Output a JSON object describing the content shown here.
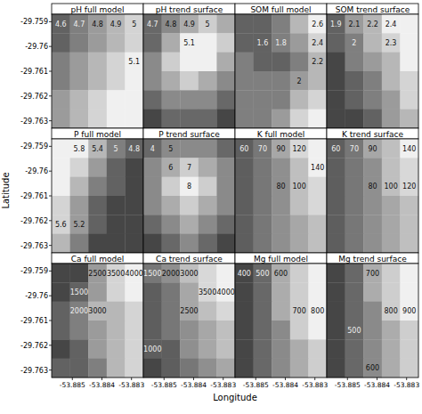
{
  "chart_data": {
    "type": "contour",
    "xlabel": "Longitude",
    "ylabel": "Latitude",
    "xlim": [
      -53.8857,
      -53.8826
    ],
    "ylim": [
      -29.7633,
      -29.7587
    ],
    "xticks": [
      -53.885,
      -53.884,
      -53.883
    ],
    "yticks": [
      -29.759,
      -29.76,
      -29.761,
      -29.762,
      -29.763
    ],
    "panels": [
      {
        "title": "pH full model",
        "levels": [
          4.6,
          4.7,
          4.8,
          4.9,
          5.0,
          5.1
        ],
        "cells": [
          [
            4.6,
            4.7,
            4.8,
            4.9,
            5.0
          ],
          [
            4.6,
            4.7,
            4.8,
            4.9,
            5.0
          ],
          [
            4.7,
            4.8,
            4.9,
            5.0,
            5.1
          ],
          [
            4.7,
            4.8,
            4.9,
            5.0,
            5.1
          ],
          [
            4.8,
            4.9,
            5.0,
            5.1,
            5.2
          ],
          [
            4.8,
            4.9,
            5.0,
            5.1,
            5.2
          ]
        ]
      },
      {
        "title": "pH trend surface",
        "levels": [
          4.7,
          4.8,
          4.9,
          5.0,
          5.1
        ],
        "cells": [
          [
            4.7,
            4.8,
            4.9,
            5.0,
            4.9
          ],
          [
            4.7,
            4.9,
            5.1,
            5.2,
            5.0
          ],
          [
            4.8,
            5.0,
            5.2,
            5.1,
            4.9
          ],
          [
            4.8,
            4.9,
            5.0,
            4.9,
            4.8
          ],
          [
            4.7,
            4.8,
            4.8,
            4.8,
            4.7
          ],
          [
            4.6,
            4.7,
            4.7,
            4.7,
            4.6
          ]
        ]
      },
      {
        "title": "SOM full model",
        "levels": [
          1.6,
          1.8,
          2.0,
          2.2,
          2.4,
          2.6
        ],
        "cells": [
          [
            1.7,
            1.7,
            1.9,
            2.3,
            2.6
          ],
          [
            1.7,
            1.6,
            1.8,
            2.1,
            2.4
          ],
          [
            1.8,
            1.7,
            1.7,
            1.9,
            2.2
          ],
          [
            1.8,
            1.8,
            1.8,
            2.0,
            2.3
          ],
          [
            1.9,
            1.8,
            1.9,
            2.2,
            2.5
          ],
          [
            1.9,
            1.9,
            2.0,
            2.4,
            2.6
          ]
        ]
      },
      {
        "title": "SOM trend surface",
        "levels": [
          1.9,
          2.0,
          2.1,
          2.2,
          2.3,
          2.4
        ],
        "cells": [
          [
            1.9,
            2.1,
            2.2,
            2.4,
            2.5
          ],
          [
            1.9,
            2.0,
            2.2,
            2.3,
            2.4
          ],
          [
            1.8,
            2.0,
            2.1,
            2.2,
            2.4
          ],
          [
            1.8,
            1.9,
            2.0,
            2.2,
            2.3
          ],
          [
            1.8,
            1.9,
            2.0,
            2.1,
            2.3
          ],
          [
            1.7,
            1.8,
            1.9,
            2.1,
            2.2
          ]
        ]
      },
      {
        "title": "P full model",
        "levels": [
          4.8,
          5.0,
          5.2,
          5.4,
          5.6,
          5.8
        ],
        "cells": [
          [
            5.9,
            5.8,
            5.4,
            5.0,
            4.8
          ],
          [
            5.9,
            5.7,
            5.3,
            4.9,
            4.7
          ],
          [
            5.8,
            5.5,
            5.1,
            4.8,
            4.6
          ],
          [
            5.7,
            5.3,
            4.9,
            4.7,
            4.6
          ],
          [
            5.6,
            5.2,
            4.8,
            4.6,
            4.5
          ],
          [
            5.5,
            5.0,
            4.7,
            4.5,
            4.4
          ]
        ]
      },
      {
        "title": "P trend surface",
        "levels": [
          4,
          5,
          6,
          7,
          8
        ],
        "cells": [
          [
            4,
            5,
            5,
            5,
            4
          ],
          [
            5,
            6,
            7,
            6,
            5
          ],
          [
            5,
            7,
            8.5,
            7,
            5
          ],
          [
            5,
            6,
            7,
            6,
            5
          ],
          [
            4,
            5,
            6,
            5,
            4
          ],
          [
            3,
            4,
            5,
            4,
            3
          ]
        ]
      },
      {
        "title": "K full model",
        "levels": [
          60,
          70,
          80,
          90,
          100,
          120,
          140
        ],
        "cells": [
          [
            60,
            70,
            90,
            120,
            150
          ],
          [
            60,
            70,
            85,
            110,
            140
          ],
          [
            60,
            70,
            80,
            100,
            130
          ],
          [
            60,
            70,
            80,
            100,
            120
          ],
          [
            60,
            70,
            80,
            90,
            110
          ],
          [
            60,
            70,
            80,
            90,
            110
          ]
        ]
      },
      {
        "title": "K trend surface",
        "levels": [
          60,
          70,
          80,
          90,
          100,
          120,
          140
        ],
        "cells": [
          [
            60,
            70,
            90,
            110,
            140
          ],
          [
            60,
            70,
            85,
            105,
            130
          ],
          [
            60,
            70,
            80,
            100,
            125
          ],
          [
            60,
            70,
            80,
            95,
            115
          ],
          [
            60,
            70,
            80,
            90,
            110
          ],
          [
            60,
            70,
            80,
            90,
            105
          ]
        ]
      },
      {
        "title": "Ca full model",
        "levels": [
          1500,
          2000,
          2500,
          3000,
          3500,
          4000
        ],
        "cells": [
          [
            1000,
            1200,
            2500,
            3500,
            4000
          ],
          [
            1200,
            1500,
            2800,
            3600,
            4000
          ],
          [
            1500,
            2000,
            3000,
            3400,
            3700
          ],
          [
            1500,
            2200,
            2800,
            3200,
            3600
          ],
          [
            1400,
            1800,
            2600,
            3000,
            3500
          ],
          [
            1500,
            1700,
            2400,
            3000,
            3500
          ]
        ]
      },
      {
        "title": "Ca trend surface",
        "levels": [
          1000,
          1500,
          2000,
          2500,
          3000,
          3500,
          4000
        ],
        "cells": [
          [
            1500,
            2000,
            3000,
            3800,
            4200
          ],
          [
            1300,
            1800,
            2800,
            3500,
            4000
          ],
          [
            1200,
            1700,
            2500,
            3200,
            3600
          ],
          [
            1100,
            1500,
            2200,
            2800,
            3200
          ],
          [
            1000,
            1300,
            2000,
            2600,
            3000
          ],
          [
            900,
            1200,
            1800,
            2400,
            2800
          ]
        ]
      },
      {
        "title": "Mg full model",
        "levels": [
          400,
          500,
          600,
          700,
          800
        ],
        "cells": [
          [
            350,
            450,
            600,
            750,
            850
          ],
          [
            350,
            450,
            600,
            750,
            850
          ],
          [
            350,
            450,
            600,
            700,
            800
          ],
          [
            350,
            450,
            580,
            700,
            800
          ],
          [
            350,
            450,
            560,
            680,
            780
          ],
          [
            350,
            450,
            550,
            650,
            750
          ]
        ]
      },
      {
        "title": "Mg trend surface",
        "levels": [
          500,
          600,
          700,
          800,
          900
        ],
        "cells": [
          [
            400,
            550,
            700,
            850,
            950
          ],
          [
            400,
            550,
            700,
            820,
            920
          ],
          [
            400,
            520,
            680,
            800,
            900
          ],
          [
            400,
            500,
            650,
            780,
            880
          ],
          [
            400,
            500,
            630,
            750,
            850
          ],
          [
            400,
            500,
            620,
            730,
            830
          ]
        ]
      }
    ]
  }
}
